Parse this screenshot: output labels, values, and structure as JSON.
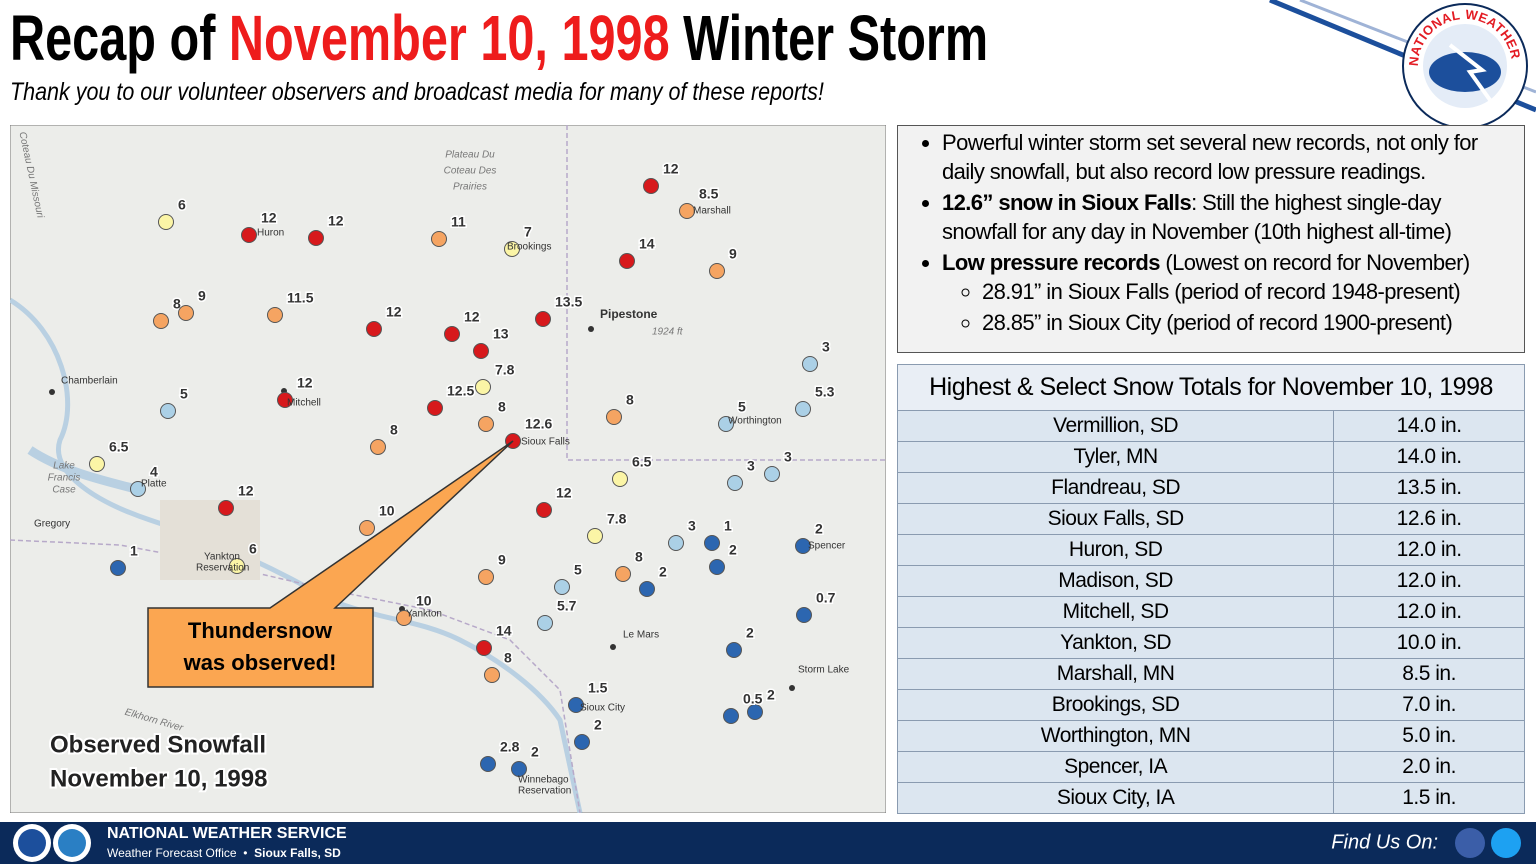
{
  "header": {
    "title_prefix": "Recap of ",
    "title_date": "November 10, 1998",
    "title_suffix": " Winter Storm",
    "subtitle": "Thank you to our volunteer observers and broadcast media for many of these reports!"
  },
  "logo_text": "NATIONAL WEATHER SERVICE",
  "summary": {
    "bullets": [
      {
        "text": "Powerful winter storm set several new records, not only for daily snowfall, but also record low pressure readings."
      },
      {
        "bold": "12.6” snow in Sioux Falls",
        "text": ": Still the highest single-day snowfall for any day in November (10th highest all-time)"
      },
      {
        "bold": "Low pressure records",
        "text": " (Lowest on record for November)",
        "sub_bullets": [
          "28.91” in Sioux Falls (period of record 1948-present)",
          "28.85” in Sioux City (period of record 1900-present)"
        ]
      }
    ]
  },
  "table": {
    "title": "Highest & Select Snow Totals for November 10, 1998",
    "rows": [
      [
        "Vermillion, SD",
        "14.0 in."
      ],
      [
        "Tyler, MN",
        "14.0 in."
      ],
      [
        "Flandreau, SD",
        "13.5 in."
      ],
      [
        "Sioux Falls, SD",
        "12.6 in."
      ],
      [
        "Huron, SD",
        "12.0 in."
      ],
      [
        "Madison, SD",
        "12.0 in."
      ],
      [
        "Mitchell, SD",
        "12.0 in."
      ],
      [
        "Yankton, SD",
        "10.0 in."
      ],
      [
        "Marshall, MN",
        "8.5 in."
      ],
      [
        "Brookings, SD",
        "7.0 in."
      ],
      [
        "Worthington, MN",
        "5.0 in."
      ],
      [
        "Spencer, IA",
        "2.0 in."
      ],
      [
        "Sioux City, IA",
        "1.5 in."
      ]
    ]
  },
  "map": {
    "title_lines": [
      "Observed Snowfall",
      "November 10, 1998"
    ],
    "callout": [
      "Thundersnow",
      "was observed!"
    ],
    "places": [
      "Plateau Du",
      "Coteau Des",
      "Prairies",
      "Huron",
      "Brookings",
      "Marshall",
      "Pipestone",
      "1924 ft",
      "Chamberlain",
      "Mitchell",
      "Sioux Falls",
      "Worthington",
      "Lake",
      "Francis",
      "Case",
      "Platte",
      "Gregory",
      "Yankton",
      "Reservation",
      "Spencer",
      "Yankton",
      "Le Mars",
      "Storm Lake",
      "Sioux City",
      "Winnebago",
      "Reservation",
      "Coteau Du Missouri",
      "Elkhorn River"
    ],
    "reports": [
      {
        "value": 6,
        "color": "#fbf5a6"
      },
      {
        "value": 12,
        "color": "#d7191c"
      },
      {
        "value": 12,
        "color": "#d7191c"
      },
      {
        "value": 11,
        "color": "#f5a462"
      },
      {
        "value": 7,
        "color": "#fbf5a6"
      },
      {
        "value": 12,
        "color": "#d7191c"
      },
      {
        "value": 8.5,
        "color": "#f5a462"
      },
      {
        "value": 14,
        "color": "#d7191c"
      },
      {
        "value": 9,
        "color": "#f5a462"
      },
      {
        "value": 8,
        "color": "#f5a462"
      },
      {
        "value": 9,
        "color": "#f5a462"
      },
      {
        "value": 11.5,
        "color": "#f5a462"
      },
      {
        "value": 12,
        "color": "#d7191c"
      },
      {
        "value": 12,
        "color": "#d7191c"
      },
      {
        "value": 13,
        "color": "#d7191c"
      },
      {
        "value": 13.5,
        "color": "#d7191c"
      },
      {
        "value": 7.8,
        "color": "#fbf5a6"
      },
      {
        "value": 12.5,
        "color": "#d7191c"
      },
      {
        "value": 12,
        "color": "#d7191c"
      },
      {
        "value": 5,
        "color": "#abd0e6"
      },
      {
        "value": 8,
        "color": "#f5a462"
      },
      {
        "value": 12.6,
        "color": "#d7191c"
      },
      {
        "value": 8,
        "color": "#f5a462"
      },
      {
        "value": 8,
        "color": "#f5a462"
      },
      {
        "value": 5,
        "color": "#abd0e6"
      },
      {
        "value": 5.3,
        "color": "#abd0e6"
      },
      {
        "value": 3,
        "color": "#abd0e6"
      },
      {
        "value": 6.5,
        "color": "#fbf5a6"
      },
      {
        "value": 4,
        "color": "#abd0e6"
      },
      {
        "value": 6.5,
        "color": "#fbf5a6"
      },
      {
        "value": 3,
        "color": "#abd0e6"
      },
      {
        "value": 3,
        "color": "#abd0e6"
      },
      {
        "value": 12,
        "color": "#d7191c"
      },
      {
        "value": 12,
        "color": "#d7191c"
      },
      {
        "value": 7.8,
        "color": "#fbf5a6"
      },
      {
        "value": 10,
        "color": "#f5a462"
      },
      {
        "value": 3,
        "color": "#abd0e6"
      },
      {
        "value": 1,
        "color": "#2c66b0"
      },
      {
        "value": 2,
        "color": "#2c66b0"
      },
      {
        "value": 2,
        "color": "#2c66b0"
      },
      {
        "value": 1,
        "color": "#2c66b0"
      },
      {
        "value": 6,
        "color": "#fbf5a6"
      },
      {
        "value": 9,
        "color": "#f5a462"
      },
      {
        "value": 5,
        "color": "#abd0e6"
      },
      {
        "value": 8,
        "color": "#f5a462"
      },
      {
        "value": 2,
        "color": "#2c66b0"
      },
      {
        "value": 10,
        "color": "#f5a462"
      },
      {
        "value": 5.7,
        "color": "#abd0e6"
      },
      {
        "value": 0.7,
        "color": "#2c66b0"
      },
      {
        "value": 14,
        "color": "#d7191c"
      },
      {
        "value": 8,
        "color": "#f5a462"
      },
      {
        "value": 2,
        "color": "#2c66b0"
      },
      {
        "value": 1.5,
        "color": "#2c66b0"
      },
      {
        "value": 2,
        "color": "#2c66b0"
      },
      {
        "value": 0.5,
        "color": "#2c66b0"
      },
      {
        "value": 2,
        "color": "#2c66b0"
      },
      {
        "value": 2.8,
        "color": "#2c66b0"
      },
      {
        "value": 2,
        "color": "#2c66b0"
      }
    ]
  },
  "footer": {
    "agency": "NATIONAL WEATHER SERVICE",
    "office_prefix": "Weather Forecast Office  •  ",
    "office": "Sioux Falls, SD",
    "social": "Find Us On:"
  }
}
